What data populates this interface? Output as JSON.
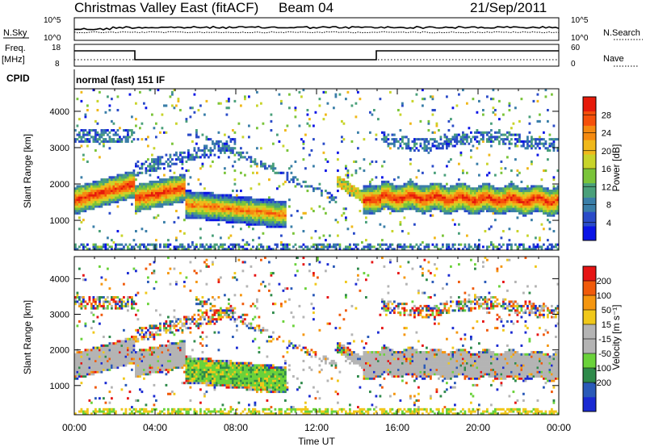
{
  "header": {
    "station": "Christmas Valley East (fitACF)",
    "beam": "Beam 04",
    "date": "21/Sep/2011"
  },
  "top_panels": {
    "nsky_label": "N.Sky",
    "nsearch_label": "N.Search",
    "noise_tick_top": "10^5",
    "noise_tick_bottom": "10^0",
    "freq_label_1": "Freq.",
    "freq_label_2": "[MHz]",
    "freq_tick_top": "18",
    "freq_tick_bottom": "8",
    "nave_label": "Nave",
    "nave_tick_top": "60",
    "nave_tick_bottom": "0",
    "cpid_label": "CPID",
    "cpid_value": "normal (fast) 151 IF"
  },
  "chart_data": [
    {
      "type": "heatmap",
      "name": "power",
      "xlabel": "",
      "ylabel": "Slant Range [km]",
      "x_ticks": [
        "00:00",
        "04:00",
        "08:00",
        "12:00",
        "16:00",
        "20:00",
        "00:00"
      ],
      "y_ticks": [
        1000,
        2000,
        3000,
        4000
      ],
      "xlim_hours": [
        0,
        24
      ],
      "ylim_km": [
        180,
        4620
      ],
      "colorbar": {
        "label": "Power [dB]",
        "ticks": [
          4,
          8,
          12,
          16,
          20,
          24,
          28
        ],
        "range": [
          0,
          32
        ],
        "colors": [
          "#0a14e6",
          "#2a4bc8",
          "#3a7ea8",
          "#4aa07a",
          "#7ac43a",
          "#c8d42a",
          "#f0b81a",
          "#f58a10",
          "#f5500a",
          "#e61a0a"
        ]
      }
    },
    {
      "type": "heatmap",
      "name": "velocity",
      "xlabel": "Time UT",
      "ylabel": "Slant Range [km]",
      "x_ticks": [
        "00:00",
        "04:00",
        "08:00",
        "12:00",
        "16:00",
        "20:00",
        "00:00"
      ],
      "y_ticks": [
        1000,
        2000,
        3000,
        4000
      ],
      "xlim_hours": [
        0,
        24
      ],
      "ylim_km": [
        180,
        4620
      ],
      "colorbar": {
        "label": "Velocity [m s⁻¹]",
        "ticks": [
          "200",
          "100",
          "50",
          "15",
          "-15",
          "-50",
          "-100",
          "-200"
        ],
        "colors": [
          "#1a2ad2",
          "#2a5ab8",
          "#2e8a4a",
          "#6ad23a",
          "#b4b4b4",
          "#b4b4b4",
          "#f0c81a",
          "#f5960f",
          "#f05a0a",
          "#e61414"
        ]
      }
    }
  ],
  "colors": {
    "ground_scatter": "#b4b4b4",
    "axis": "#000000"
  }
}
